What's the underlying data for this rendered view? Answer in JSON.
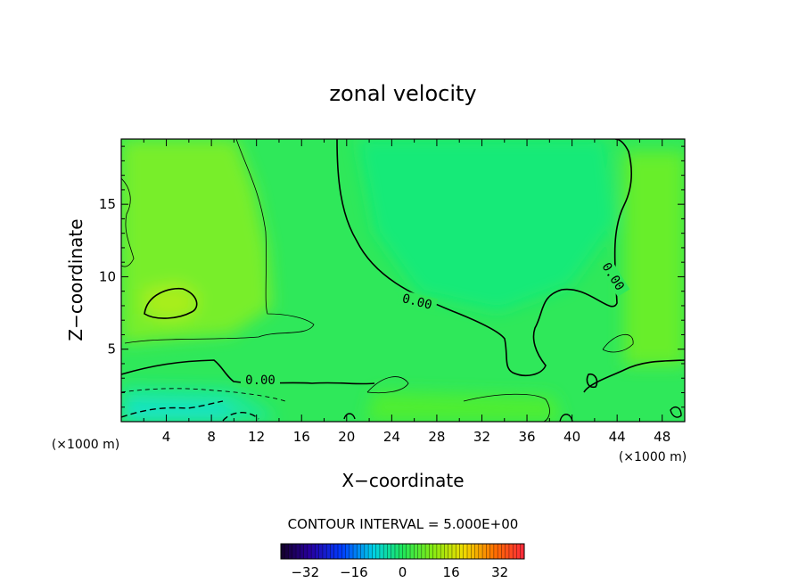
{
  "chart_data": {
    "type": "heatmap",
    "title": "zonal velocity",
    "xlabel": "X−coordinate",
    "ylabel": "Z−coordinate",
    "x_unit_left": "(×1000 m)",
    "x_unit_right": "(×1000 m)",
    "xlim": [
      0,
      50
    ],
    "ylim": [
      0,
      19.5
    ],
    "x_ticks": [
      4,
      8,
      12,
      16,
      20,
      24,
      28,
      32,
      36,
      40,
      44,
      48
    ],
    "y_ticks": [
      5,
      10,
      15
    ],
    "contour_interval_text": "CONTOUR INTERVAL = 5.000E+00",
    "contour_labels": [
      "0.00",
      "0.00",
      "0.00"
    ],
    "colorbar": {
      "range": [
        -40,
        40
      ],
      "ticks": [
        -32,
        -16,
        0,
        16,
        32
      ],
      "tick_labels": [
        "−32",
        "−16",
        "0",
        "16",
        "32"
      ]
    },
    "field_range": [
      -10,
      8
    ],
    "grid": false
  }
}
